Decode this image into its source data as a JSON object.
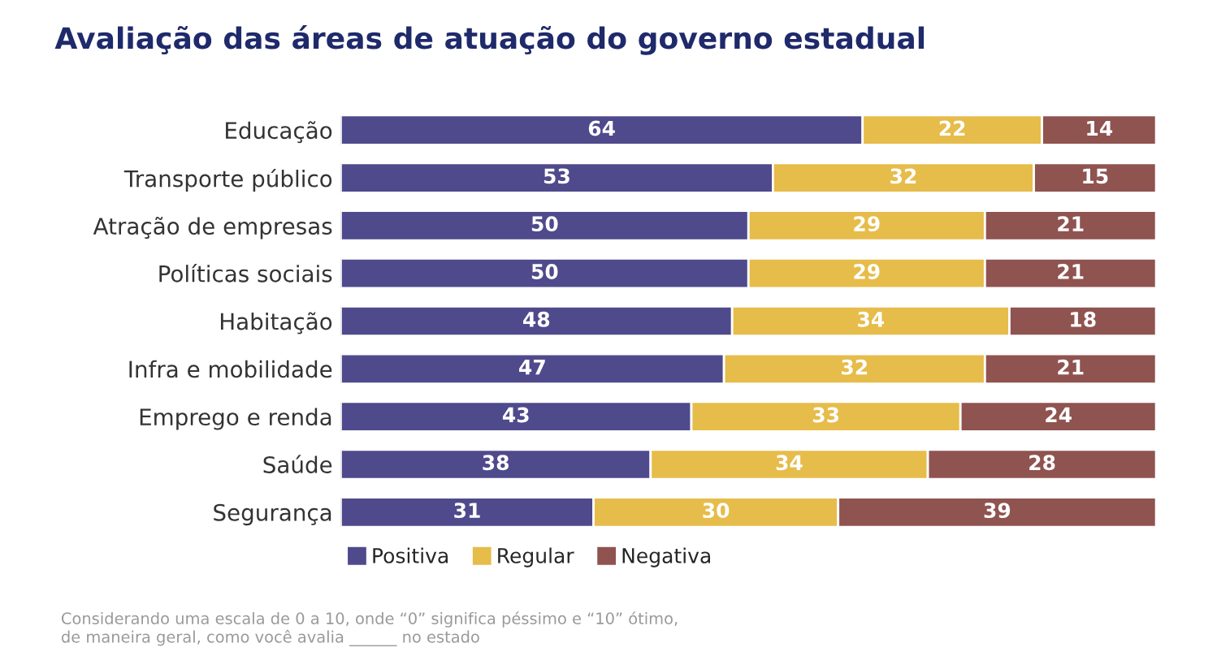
{
  "chart_data": {
    "type": "bar",
    "orientation": "horizontal",
    "stacked": true,
    "title": "Avaliação das áreas de atuação do governo estadual",
    "categories": [
      "Educação",
      "Transporte público",
      "Atração de empresas",
      "Políticas sociais",
      "Habitação",
      "Infra e mobilidade",
      "Emprego e renda",
      "Saúde",
      "Segurança"
    ],
    "series": [
      {
        "name": "Positiva",
        "color": "#4f4a8c",
        "values": [
          64,
          53,
          50,
          50,
          48,
          47,
          43,
          38,
          31
        ]
      },
      {
        "name": "Regular",
        "color": "#e6bc4a",
        "values": [
          22,
          32,
          29,
          29,
          34,
          32,
          33,
          34,
          30
        ]
      },
      {
        "name": "Negativa",
        "color": "#8f5350",
        "values": [
          14,
          15,
          21,
          21,
          18,
          21,
          24,
          28,
          39
        ]
      }
    ],
    "data_labels": true,
    "legend": "bottom left",
    "grid": false,
    "tick_labels": "y",
    "annotations": [
      "Considerando uma escala de 0 a 10, onde “0” significa péssimo e “10” ótimo,\nde maneira geral, como você avalia ______ no estado"
    ]
  }
}
